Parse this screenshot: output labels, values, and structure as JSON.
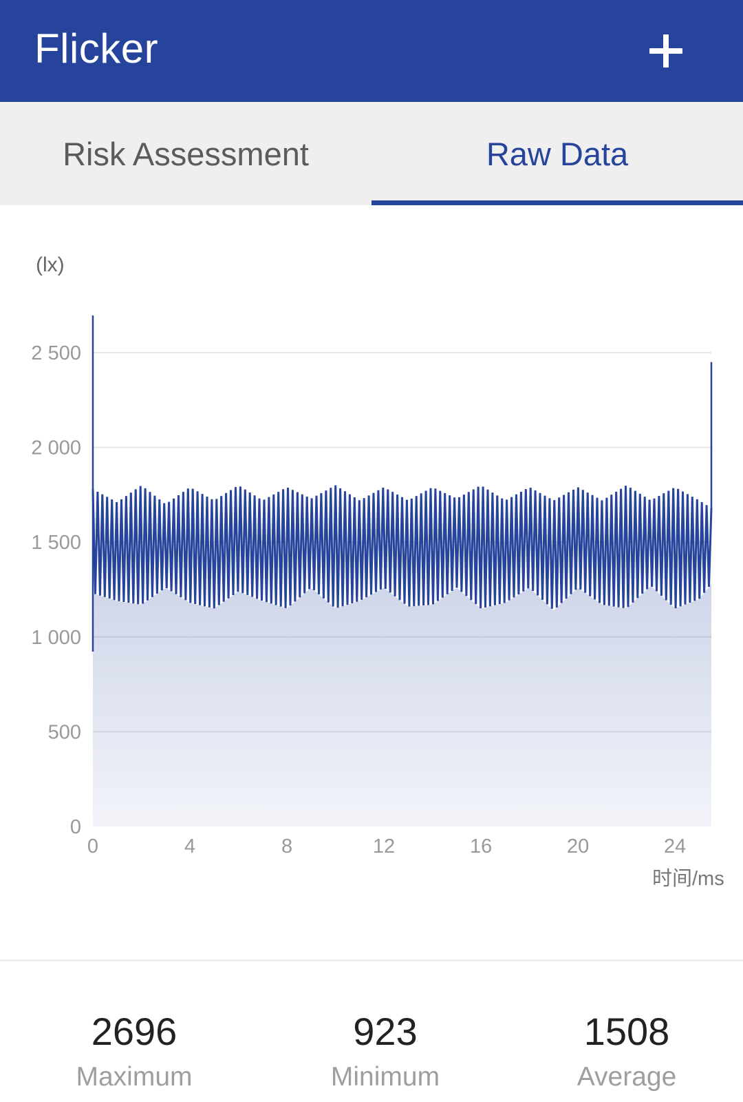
{
  "app_bar": {
    "title": "Flicker",
    "add_icon": "plus-icon"
  },
  "tabs": [
    {
      "label": "Risk Assessment",
      "active": false
    },
    {
      "label": "Raw Data",
      "active": true
    }
  ],
  "colors": {
    "primary": "#27449c",
    "tab_background": "#efefef",
    "inactive_tab_text": "#5b5b5b",
    "axis_text": "#999999"
  },
  "chart": {
    "y_unit": "(lx)",
    "x_unit": "时间/ms"
  },
  "chart_data": {
    "type": "area",
    "xlabel": "时间/ms",
    "ylabel": "(lx)",
    "xlim": [
      0,
      25.5
    ],
    "ylim": [
      0,
      2696
    ],
    "x_ticks": [
      "0",
      "4",
      "8",
      "12",
      "16",
      "20",
      "24"
    ],
    "y_ticks": [
      "0",
      "500",
      "1 000",
      "1 500",
      "2 000",
      "2 500"
    ],
    "grid": "horizontal",
    "x": [
      0,
      1,
      2,
      3,
      4,
      5,
      6,
      7,
      8,
      9,
      10,
      11,
      12,
      13,
      14,
      15,
      16,
      17,
      18,
      19,
      20,
      21,
      22,
      23,
      24,
      25,
      25.5
    ],
    "upper": [
      1780,
      1710,
      1800,
      1700,
      1790,
      1720,
      1800,
      1720,
      1790,
      1730,
      1800,
      1720,
      1790,
      1720,
      1790,
      1730,
      1800,
      1720,
      1790,
      1720,
      1790,
      1720,
      1800,
      1720,
      1790,
      1720,
      1680
    ],
    "lower": [
      1230,
      1190,
      1170,
      1260,
      1180,
      1150,
      1240,
      1190,
      1150,
      1260,
      1150,
      1190,
      1260,
      1160,
      1170,
      1260,
      1150,
      1180,
      1260,
      1140,
      1260,
      1170,
      1150,
      1270,
      1150,
      1200,
      1280
    ],
    "spikes": [
      {
        "x": 0,
        "y": 2696
      },
      {
        "x": 0,
        "y": 923
      },
      {
        "x": 25.5,
        "y": 2450
      }
    ]
  },
  "stats": {
    "maximum": {
      "value": "2696",
      "label": "Maximum"
    },
    "minimum": {
      "value": "923",
      "label": "Minimum"
    },
    "average": {
      "value": "1508",
      "label": "Average"
    }
  }
}
